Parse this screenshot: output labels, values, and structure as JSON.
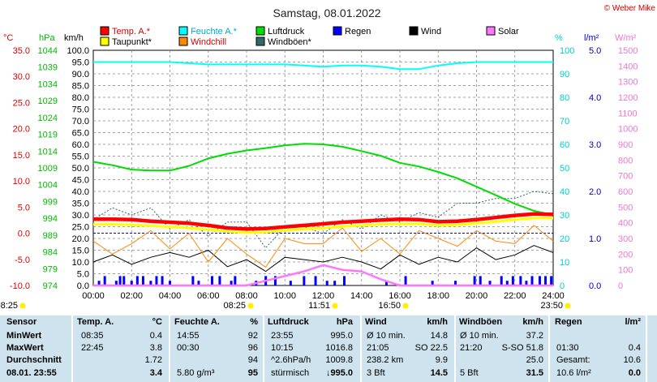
{
  "title": "Samstag, 08.01.2022",
  "copyright": "© Weber Mike",
  "legend": [
    {
      "label": "Temp. A.*",
      "color": "#ff0000"
    },
    {
      "label": "Feuchte A.*",
      "color": "#00ffff"
    },
    {
      "label": "Luftdruck",
      "color": "#00dd00"
    },
    {
      "label": "Regen",
      "color": "#0000ff"
    },
    {
      "label": "Wind",
      "color": "#000000"
    },
    {
      "label": "Solar",
      "color": "#ff77ff"
    },
    {
      "label": "Taupunkt*",
      "color": "#ffff00"
    },
    {
      "label": "Windchill",
      "color": "#ff8800"
    },
    {
      "label": "Windböen*",
      "color": "#336666"
    }
  ],
  "axes": {
    "temp": {
      "unit": "°C",
      "ticks": [
        "35.0",
        "30.0",
        "25.0",
        "20.0",
        "15.0",
        "10.0",
        "5.0",
        "0.0",
        "-5.0",
        "-10.0"
      ],
      "color": "#dd0000"
    },
    "hpa": {
      "unit": "hPa",
      "ticks": [
        "1044",
        "1039",
        "1034",
        "1029",
        "1024",
        "1019",
        "1014",
        "1009",
        "1004",
        "999",
        "994",
        "989",
        "984",
        "979",
        "974"
      ],
      "color": "#00bb00"
    },
    "kmh": {
      "unit": "km/h",
      "ticks": [
        "100.0",
        "95.0",
        "90.0",
        "85.0",
        "80.0",
        "75.0",
        "70.0",
        "65.0",
        "60.0",
        "55.0",
        "50.0",
        "45.0",
        "40.0",
        "35.0",
        "30.0",
        "25.0",
        "20.0",
        "15.0",
        "10.0",
        "5.0",
        "0.0"
      ],
      "color": "#000000"
    },
    "pct": {
      "unit": "%",
      "ticks": [
        "100",
        "90",
        "80",
        "70",
        "60",
        "50",
        "40",
        "30",
        "20",
        "10",
        "0"
      ],
      "color": "#00cccc"
    },
    "rain": {
      "unit": "l/m²",
      "ticks": [
        "5.0",
        "4.0",
        "3.0",
        "2.0",
        "1.0",
        "0.0"
      ],
      "color": "#0000cc"
    },
    "solar": {
      "unit": "W/m²",
      "ticks": [
        "1500",
        "1400",
        "1300",
        "1200",
        "1100",
        "1000",
        "900",
        "800",
        "700",
        "600",
        "500",
        "400",
        "300",
        "200",
        "100",
        "0"
      ],
      "color": "#ee77cc"
    },
    "time": [
      "00:00",
      "02:00",
      "04:00",
      "06:00",
      "08:00",
      "10:00",
      "12:00",
      "14:00",
      "16:00",
      "18:00",
      "20:00",
      "22:00",
      "24:00"
    ]
  },
  "sun_marks": [
    "08:25",
    "08:25",
    "11:51",
    "16:50",
    "23:50"
  ],
  "chart_data": {
    "type": "line",
    "x_hours": [
      0,
      1,
      2,
      3,
      4,
      5,
      6,
      7,
      8,
      9,
      10,
      11,
      12,
      13,
      14,
      15,
      16,
      17,
      18,
      19,
      20,
      21,
      22,
      23,
      24
    ],
    "series": [
      {
        "name": "Temp. A.*",
        "color": "#ff0000",
        "axis": "temp",
        "values": [
          2.7,
          2.7,
          2.6,
          2.3,
          2.1,
          1.9,
          1.5,
          1.0,
          0.8,
          0.9,
          1.2,
          1.5,
          1.8,
          2.1,
          2.3,
          2.5,
          2.7,
          2.6,
          2.2,
          2.3,
          2.6,
          3.0,
          3.4,
          3.7,
          3.6
        ]
      },
      {
        "name": "Taupunkt*",
        "color": "#ffff00",
        "axis": "temp",
        "values": [
          1.7,
          1.7,
          1.6,
          1.4,
          1.2,
          1.0,
          0.7,
          0.3,
          0.1,
          0.2,
          0.5,
          0.8,
          1.0,
          1.3,
          1.5,
          1.7,
          1.8,
          1.8,
          1.5,
          1.6,
          1.9,
          2.2,
          2.6,
          2.9,
          2.9
        ]
      },
      {
        "name": "Feuchte A.*",
        "color": "#00ffff",
        "axis": "pct",
        "values": [
          95,
          95,
          95,
          95,
          95,
          94.5,
          94,
          94,
          94,
          94,
          94,
          93.5,
          93,
          93.5,
          93.5,
          93,
          92,
          92,
          93.5,
          94.5,
          95,
          95,
          95,
          95,
          95
        ]
      },
      {
        "name": "Luftdruck",
        "color": "#00dd00",
        "axis": "hpa",
        "values": [
          1010.8,
          1009.8,
          1008.5,
          1008.2,
          1008.2,
          1009.6,
          1011.8,
          1013.2,
          1014.2,
          1014.9,
          1015.7,
          1016.2,
          1016.0,
          1015.3,
          1014.0,
          1012.6,
          1010.5,
          1009.4,
          1007.8,
          1005.9,
          1003.4,
          1000.9,
          998.3,
          996.2,
          995.0
        ]
      },
      {
        "name": "Windchill",
        "color": "#ff8800",
        "axis": "temp",
        "values": [
          -1.5,
          -4.0,
          -2.0,
          0.5,
          -3.0,
          0.0,
          -5.5,
          -1.0,
          -4.0,
          -6.5,
          -1.0,
          -2.0,
          -2.0,
          1.0,
          -3.5,
          -1.0,
          -4.0,
          0.5,
          -1.0,
          -2.5,
          0.5,
          -1.5,
          -2.0,
          1.5,
          -1.5
        ]
      },
      {
        "name": "Wind",
        "color": "#000000",
        "axis": "kmh",
        "values": [
          10,
          13,
          9,
          12,
          14,
          12,
          15,
          8,
          11,
          6,
          12,
          11,
          10,
          12,
          10,
          7,
          13,
          9,
          12,
          10,
          16,
          11,
          13,
          17,
          14
        ]
      },
      {
        "name": "Windböen*",
        "color": "#336666",
        "axis": "kmh",
        "values": [
          28,
          33,
          30,
          33,
          24,
          28,
          21,
          27,
          27,
          16,
          25,
          25,
          22,
          28,
          24,
          30,
          27,
          31,
          29,
          35,
          35,
          37,
          37,
          40,
          39
        ]
      },
      {
        "name": "Solar",
        "color": "#ff77ff",
        "axis": "solar",
        "values": [
          0,
          0,
          0,
          0,
          0,
          0,
          0,
          0,
          0,
          30,
          60,
          90,
          130,
          100,
          90,
          40,
          0,
          0,
          0,
          0,
          0,
          0,
          0,
          0,
          0
        ]
      }
    ],
    "rain": {
      "name": "Regen",
      "color": "#0000ff",
      "axis": "rain",
      "hours": [
        0.3,
        0.6,
        1.2,
        1.4,
        1.6,
        2.0,
        2.3,
        2.6,
        3.0,
        3.3,
        3.6,
        4.0,
        5.2,
        5.5,
        6.2,
        6.6,
        7.2,
        7.4,
        8.5,
        9.0,
        9.5,
        10.3,
        11.0,
        11.6,
        12.2,
        12.6,
        13.1,
        15.3,
        16.3,
        17.7,
        18.9,
        19.9,
        20.2,
        20.7,
        21.3,
        21.6,
        21.9,
        22.3,
        22.6,
        22.9,
        23.3,
        23.6,
        23.9
      ],
      "values": [
        0.1,
        0.2,
        0.1,
        0.2,
        0.2,
        0.1,
        0.2,
        0.2,
        0.1,
        0.2,
        0.2,
        0.1,
        0.2,
        0.1,
        0.2,
        0.2,
        0.1,
        0.2,
        0.1,
        0.2,
        0.2,
        0.1,
        0.2,
        0.2,
        0.1,
        0.1,
        0.2,
        0.1,
        0.2,
        0.1,
        0.1,
        0.2,
        0.2,
        0.1,
        0.2,
        0.1,
        0.2,
        0.2,
        0.1,
        0.2,
        0.2,
        0.2,
        0.2
      ]
    }
  },
  "table": {
    "headers": {
      "sensor": "Sensor",
      "temp": "Temp. A.",
      "temp_unit": "°C",
      "hum": "Feuchte A.",
      "hum_unit": "%",
      "press": "Luftdruck",
      "press_unit": "hPa",
      "wind": "Wind",
      "wind_unit": "km/h",
      "gust": "Windböen",
      "gust_unit": "km/h",
      "rain": "Regen",
      "rain_unit": "l/m²"
    },
    "rows": [
      {
        "label": "MinWert",
        "temp_time": "08:35",
        "temp_val": "0.4",
        "hum_time": "14:55",
        "hum_val": "92",
        "press_time": "23:55",
        "press_val": "995.0",
        "wind_a": "Ø 10 min.",
        "wind_val": "14.8",
        "gust_a": "Ø 10 min.",
        "gust_val": "37.2",
        "rain_a": "",
        "rain_val": ""
      },
      {
        "label": "MaxWert",
        "temp_time": "22:45",
        "temp_val": "3.8",
        "hum_time": "00:30",
        "hum_val": "96",
        "press_time": "10:15",
        "press_val": "1016.8",
        "wind_a": "21:05",
        "wind_b": "SO 22.5",
        "gust_a": "21:20",
        "gust_b": "S-SO 51.8",
        "rain_a": "01:30",
        "rain_val": "0.4"
      },
      {
        "label": "Durchschnitt",
        "temp_time": "",
        "temp_val": "1.72",
        "hum_time": "",
        "hum_val": "94",
        "press_time": "^2.6hPa/h",
        "press_val": "1009.8",
        "wind_a": "238.2 km",
        "wind_val": "9.9",
        "gust_a": "",
        "gust_val": "25.0",
        "rain_a": "Gesamt:",
        "rain_val": "10.6"
      },
      {
        "label": "08.01. 23:55",
        "temp_time": "",
        "temp_val": "3.4",
        "hum_time": "5.80 g/m³",
        "hum_val": "95",
        "press_time": "stürmisch",
        "press_val": "↓995.0",
        "wind_a": "3 Bft",
        "wind_val": "14.5",
        "gust_a": "5 Bft",
        "gust_val": "31.5",
        "rain_a": "10.6 l/m²",
        "rain_val": "0.0"
      }
    ]
  }
}
